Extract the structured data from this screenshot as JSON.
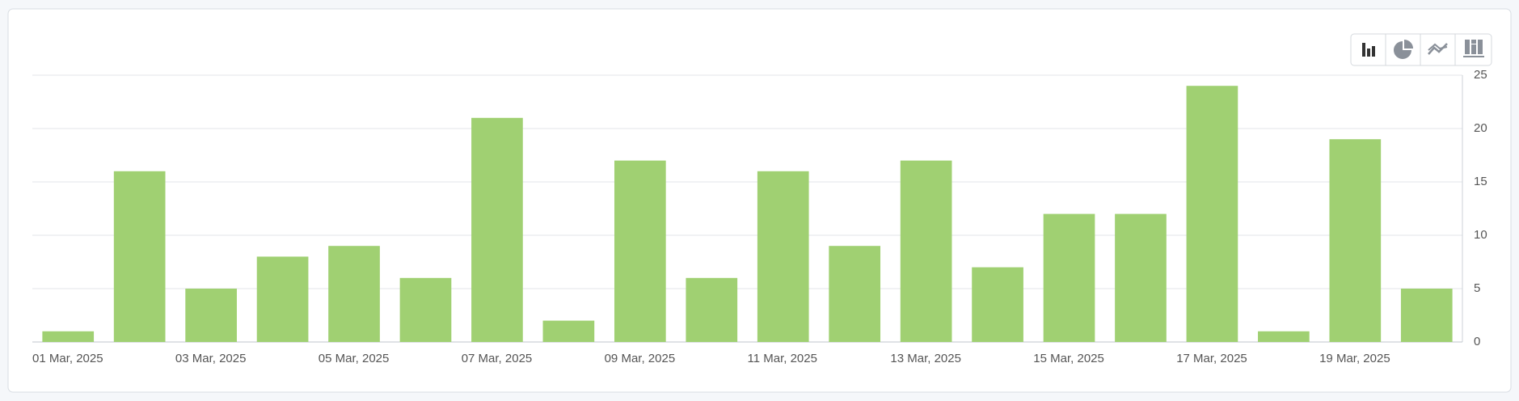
{
  "chart_data": {
    "type": "bar",
    "categories": [
      "01 Mar, 2025",
      null,
      "03 Mar, 2025",
      null,
      "05 Mar, 2025",
      null,
      "07 Mar, 2025",
      null,
      "09 Mar, 2025",
      null,
      "11 Mar, 2025",
      null,
      "13 Mar, 2025",
      null,
      "15 Mar, 2025",
      null,
      "17 Mar, 2025",
      null,
      "19 Mar, 2025",
      null
    ],
    "values": [
      1,
      16,
      5,
      8,
      9,
      6,
      21,
      2,
      17,
      6,
      16,
      9,
      17,
      7,
      12,
      12,
      24,
      1,
      19,
      5
    ],
    "color": "#a0d072",
    "ylim": [
      0,
      25
    ],
    "yticks": [
      0,
      5,
      10,
      15,
      20,
      25
    ],
    "grid": true
  }
}
